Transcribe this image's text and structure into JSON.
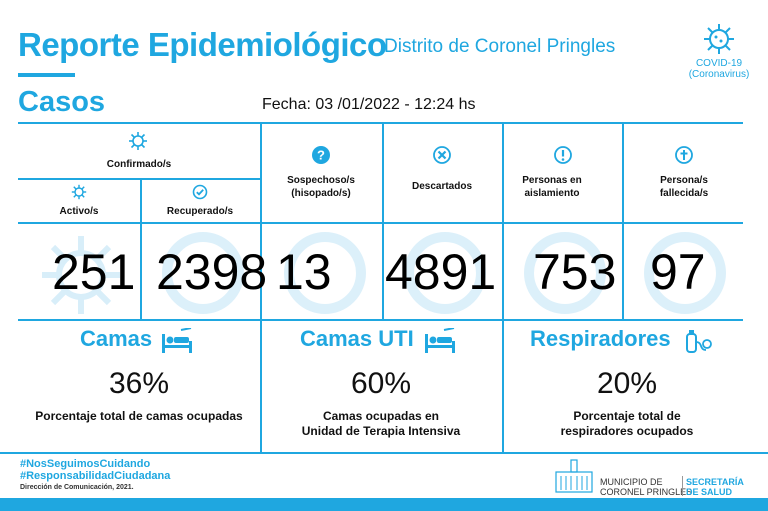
{
  "header": {
    "title": "Reporte Epidemiológico",
    "subtitle": "Distrito de Coronel Pringles",
    "covid_line1": "COVID-19",
    "covid_line2": "(Coronavirus)"
  },
  "casos_title": "Casos",
  "fecha": "Fecha:  03 /01/2022 - 12:24 hs",
  "columns": {
    "confirmados": "Confirmado/s",
    "activos": "Activo/s",
    "recuperados": "Recuperado/s",
    "sospechosos_1": "Sospechoso/s",
    "sospechosos_2": "(hisopado/s)",
    "descartados": "Descartados",
    "aislamiento_1": "Personas en",
    "aislamiento_2": "aislamiento",
    "fallecidos_1": "Persona/s",
    "fallecidos_2": "fallecida/s"
  },
  "values": {
    "activos": "251",
    "recuperados": "2398",
    "sospechosos": "13",
    "descartados": "4891",
    "aislamiento": "753",
    "fallecidos": "97"
  },
  "camas": {
    "title": "Camas",
    "pct": "36%",
    "desc": "Porcentaje total de camas ocupadas"
  },
  "camas_uti": {
    "title": "Camas UTI",
    "pct": "60%",
    "desc1": "Camas ocupadas en",
    "desc2": "Unidad de Terapia Intensiva"
  },
  "respiradores": {
    "title": "Respiradores",
    "pct": "20%",
    "desc1": "Porcentaje total de",
    "desc2": "respiradores ocupados"
  },
  "footer": {
    "hashtag1": "#NosSeguimosCuidando",
    "hashtag2": "#ResponsabilidadCiudadana",
    "direccion": "Dirección de Comunicación, 2021.",
    "muni1": "MUNICIPIO DE",
    "muni2": "CORONEL PRINGLES",
    "secretaria1": "SECRETARÍA",
    "secretaria2": "DE SALUD"
  },
  "colors": {
    "accent": "#1fa7e0",
    "accent_light": "#d8eef9",
    "text": "#111111"
  }
}
